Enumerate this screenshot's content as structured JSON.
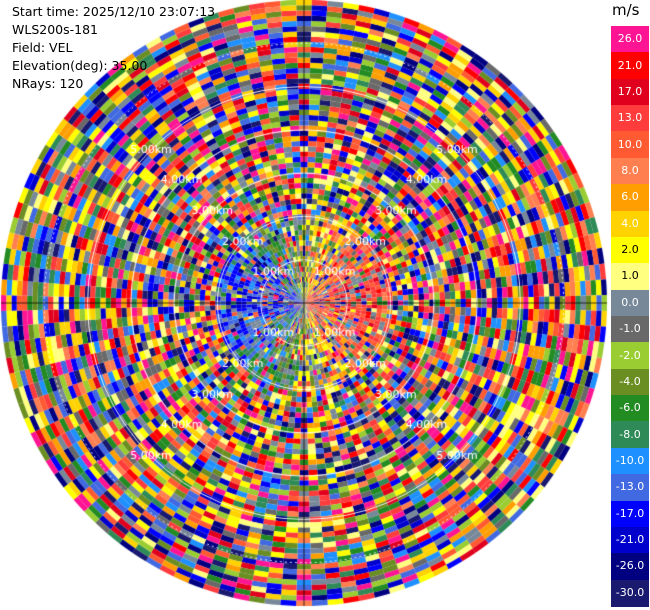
{
  "header": {
    "start_time": "Start time: 2025/12/10 23:07:13",
    "instrument": "WLS200s-181",
    "field": "Field: VEL",
    "elevation": "Elevation(deg): 35.00",
    "nrays": "NRays: 120"
  },
  "chart_data": {
    "type": "heatmap",
    "projection": "polar-ppi",
    "field": "VEL",
    "units": "m/s",
    "nrays": 120,
    "elevation_deg": 35.0,
    "range_rings_km": [
      1.0,
      2.0,
      3.0,
      4.0,
      5.0
    ],
    "range_ring_labels": [
      "1.00km",
      "2.00km",
      "3.00km",
      "4.00km",
      "5.00km"
    ],
    "max_range_km": 7.0,
    "colorbar": {
      "title": "m/s",
      "levels": [
        "26.0",
        "21.0",
        "17.0",
        "13.0",
        "10.0",
        "8.0",
        "6.0",
        "4.0",
        "2.0",
        "1.0",
        "0.0",
        "-1.0",
        "-2.0",
        "-4.0",
        "-6.0",
        "-8.0",
        "-10.0",
        "-13.0",
        "-17.0",
        "-21.0",
        "-26.0",
        "-30.0"
      ],
      "colors": [
        "#ff1493",
        "#ff0000",
        "#e0001e",
        "#ff3c3c",
        "#ff5a32",
        "#ff7f50",
        "#ff9e00",
        "#ffd200",
        "#ffff00",
        "#ffff80",
        "#778899",
        "#696969",
        "#9acd32",
        "#6b8e23",
        "#228b22",
        "#2e8b57",
        "#1e90ff",
        "#4169e1",
        "#0000ff",
        "#0000cd",
        "#000080",
        "#191970"
      ]
    },
    "pattern": "mostly-noise"
  }
}
